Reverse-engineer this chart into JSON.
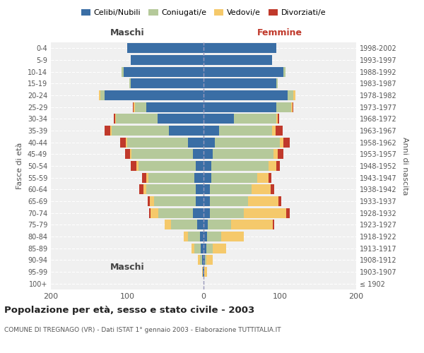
{
  "age_groups": [
    "100+",
    "95-99",
    "90-94",
    "85-89",
    "80-84",
    "75-79",
    "70-74",
    "65-69",
    "60-64",
    "55-59",
    "50-54",
    "45-49",
    "40-44",
    "35-39",
    "30-34",
    "25-29",
    "20-24",
    "15-19",
    "10-14",
    "5-9",
    "0-4"
  ],
  "birth_years": [
    "≤ 1902",
    "1903-1907",
    "1908-1912",
    "1913-1917",
    "1918-1922",
    "1923-1927",
    "1928-1932",
    "1933-1937",
    "1938-1942",
    "1943-1947",
    "1948-1952",
    "1953-1957",
    "1958-1962",
    "1963-1967",
    "1968-1972",
    "1973-1977",
    "1978-1982",
    "1983-1987",
    "1988-1992",
    "1993-1997",
    "1998-2002"
  ],
  "maschi": {
    "celibi": [
      0,
      1,
      2,
      4,
      5,
      8,
      14,
      10,
      10,
      12,
      10,
      14,
      20,
      45,
      60,
      75,
      130,
      95,
      105,
      95,
      100
    ],
    "coniugati": [
      0,
      0,
      3,
      8,
      15,
      35,
      45,
      55,
      65,
      60,
      75,
      80,
      80,
      75,
      55,
      15,
      5,
      2,
      2,
      0,
      0
    ],
    "vedovi": [
      0,
      1,
      2,
      4,
      6,
      8,
      10,
      5,
      4,
      3,
      3,
      2,
      2,
      2,
      1,
      2,
      2,
      0,
      0,
      0,
      0
    ],
    "divorziati": [
      0,
      0,
      0,
      0,
      0,
      0,
      2,
      3,
      5,
      6,
      7,
      7,
      7,
      8,
      2,
      1,
      0,
      0,
      0,
      0,
      0
    ]
  },
  "femmine": {
    "nubili": [
      0,
      1,
      2,
      4,
      5,
      6,
      8,
      8,
      8,
      10,
      10,
      12,
      15,
      20,
      40,
      95,
      110,
      95,
      105,
      90,
      95
    ],
    "coniugate": [
      0,
      0,
      2,
      8,
      18,
      30,
      45,
      50,
      55,
      60,
      75,
      80,
      85,
      70,
      55,
      20,
      8,
      2,
      2,
      0,
      0
    ],
    "vedove": [
      0,
      4,
      8,
      18,
      30,
      55,
      55,
      40,
      25,
      15,
      10,
      5,
      5,
      4,
      2,
      2,
      2,
      0,
      0,
      0,
      0
    ],
    "divorziate": [
      0,
      0,
      0,
      0,
      0,
      2,
      5,
      4,
      5,
      4,
      5,
      8,
      8,
      10,
      2,
      1,
      0,
      0,
      0,
      0,
      0
    ]
  },
  "colors": {
    "celibi_nubili": "#3a6ea5",
    "coniugati": "#b5c99a",
    "vedovi": "#f5c96b",
    "divorziati": "#c0392b"
  },
  "title": "Popolazione per età, sesso e stato civile - 2003",
  "subtitle": "COMUNE DI TREGNAGO (VR) - Dati ISTAT 1° gennaio 2003 - Elaborazione TUTTITALIA.IT",
  "ylabel_left": "Fasce di età",
  "ylabel_right": "Anni di nascita",
  "xlabel_maschi": "Maschi",
  "xlabel_femmine": "Femmine",
  "xlim": 200,
  "bg_color": "#ffffff",
  "plot_bg_color": "#f0f0f0"
}
